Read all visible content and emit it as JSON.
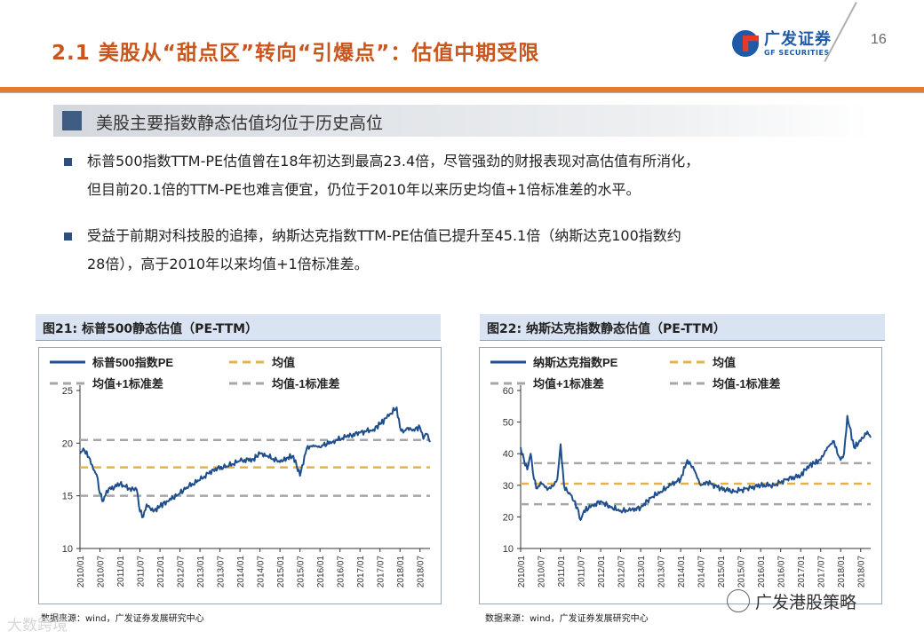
{
  "header": {
    "title": "2.1 美股从“甜点区”转向“引爆点”：估值中期受限",
    "logo_cn": "广发证券",
    "logo_en": "GF SECURITIES",
    "page_number": "16"
  },
  "section_title": "美股主要指数静态估值均位于历史高位",
  "bullets": [
    {
      "line1": "标普500指数TTM-PE估值曾在18年初达到最高23.4倍，尽管强劲的财报表现对高估值有所消化，",
      "line2": "但目前20.1倍的TTM-PE也难言便宜，仍位于2010年以来历史均值+1倍标准差的水平。"
    },
    {
      "line1": "受益于前期对科技股的追捧，纳斯达克指数TTM-PE估值已提升至45.1倍（纳斯达克100指数约",
      "line2": "28倍），高于2010年以来均值+1倍标准差。"
    }
  ],
  "figures": [
    {
      "title": "图21:  标普500静态估值（PE-TTM）",
      "source": "数据来源：wind，广发证券发展研究中心"
    },
    {
      "title": "图22:  纳斯达克指数静态估值（PE-TTM）",
      "source": "数据来源：wind，广发证券发展研究中心"
    }
  ],
  "watermarks": {
    "left": "大数跨境",
    "right": "广发港股策略"
  },
  "colors": {
    "accent": "#c8561d",
    "bar": "#e87a2f",
    "pe_line": "#1f4e8c",
    "mean": "#e3b24a",
    "std": "#a6a6a6"
  },
  "chart_data": [
    {
      "type": "line",
      "title": "图21:  标普500静态估值（PE-TTM）",
      "ylim": [
        10,
        25
      ],
      "yticks": [
        10,
        15,
        20,
        25
      ],
      "xticks": [
        "2010/01",
        "2010/07",
        "2011/01",
        "2011/07",
        "2012/01",
        "2012/07",
        "2013/01",
        "2013/07",
        "2014/01",
        "2014/07",
        "2015/01",
        "2015/07",
        "2016/01",
        "2016/07",
        "2017/01",
        "2017/07",
        "2018/01",
        "2018/07"
      ],
      "legend": [
        "标普500指数PE",
        "均值",
        "均值+1标准差",
        "均值-1标准差"
      ],
      "legend_placement": "top",
      "mean": 17.7,
      "plus1std": 20.3,
      "minus1std": 15.0,
      "series": [
        {
          "name": "标普500指数PE",
          "x": [
            0,
            1,
            3,
            4,
            5,
            6,
            7,
            8,
            12,
            15,
            17,
            18,
            19,
            20,
            22,
            24,
            26,
            29,
            32,
            36,
            40,
            44,
            48,
            52,
            54,
            56,
            60,
            62,
            64,
            66,
            68,
            70,
            72,
            73,
            76,
            80,
            84,
            88,
            90,
            92,
            95,
            96,
            97,
            98,
            100,
            102,
            103,
            104,
            105
          ],
          "values": [
            19.0,
            19.5,
            18.5,
            17.5,
            17.0,
            15.2,
            14.5,
            15.5,
            16.1,
            15.7,
            15.6,
            13.5,
            13.0,
            14.2,
            13.5,
            14.0,
            14.5,
            15.0,
            15.8,
            16.5,
            17.5,
            17.8,
            18.3,
            18.5,
            19.0,
            18.8,
            18.2,
            18.6,
            18.8,
            16.9,
            19.5,
            19.8,
            19.6,
            19.8,
            20.2,
            20.6,
            21.0,
            21.3,
            21.8,
            22.4,
            23.4,
            21.5,
            21.0,
            21.4,
            21.3,
            21.5,
            20.4,
            20.9,
            20.1
          ]
        }
      ]
    },
    {
      "type": "line",
      "title": "图22:  纳斯达克指数静态估值（PE-TTM）",
      "ylim": [
        10,
        60
      ],
      "yticks": [
        10,
        20,
        30,
        40,
        50,
        60
      ],
      "xticks": [
        "2010/01",
        "2010/07",
        "2011/01",
        "2011/07",
        "2012/01",
        "2012/07",
        "2013/01",
        "2013/07",
        "2014/01",
        "2014/07",
        "2015/01",
        "2015/07",
        "2016/01",
        "2016/07",
        "2017/01",
        "2017/07",
        "2018/01",
        "2018/07"
      ],
      "legend": [
        "纳斯达克指数PE",
        "均值",
        "均值+1标准差",
        "均值-1标准差"
      ],
      "legend_placement": "top",
      "mean": 30.5,
      "plus1std": 37.0,
      "minus1std": 24.0,
      "series": [
        {
          "name": "纳斯达克指数PE",
          "x": [
            0,
            1,
            2,
            3,
            4,
            5,
            6,
            7,
            8,
            9,
            10,
            11,
            12,
            13,
            14,
            15,
            16,
            17,
            18,
            19,
            21,
            24,
            27,
            30,
            33,
            36,
            39,
            42,
            45,
            48,
            50,
            52,
            54,
            56,
            60,
            64,
            68,
            72,
            76,
            80,
            84,
            86,
            88,
            90,
            92,
            94,
            95,
            96,
            97,
            98,
            100,
            102,
            104,
            105
          ],
          "values": [
            42.0,
            38.0,
            35.0,
            40.0,
            32.0,
            29.0,
            31.0,
            30.0,
            28.5,
            29.0,
            30.0,
            32.0,
            43.0,
            30.0,
            28.0,
            27.0,
            25.0,
            23.0,
            19.0,
            22.0,
            23.0,
            25.0,
            23.0,
            22.0,
            22.0,
            23.0,
            26.0,
            28.0,
            30.0,
            32.0,
            38.0,
            35.0,
            30.0,
            31.0,
            29.0,
            28.0,
            29.0,
            30.0,
            30.0,
            32.0,
            33.0,
            36.0,
            37.0,
            38.0,
            42.0,
            44.0,
            40.0,
            38.0,
            40.0,
            52.0,
            42.0,
            44.0,
            47.0,
            45.1
          ]
        }
      ]
    }
  ]
}
